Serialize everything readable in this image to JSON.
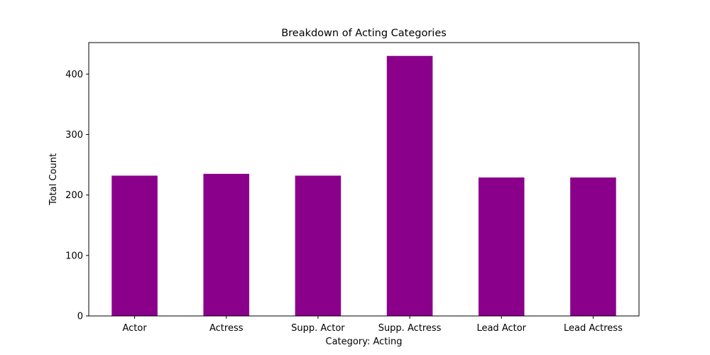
{
  "chart_data": {
    "type": "bar",
    "title": "Breakdown of Acting Categories",
    "xlabel": "Category: Acting",
    "ylabel": "Total Count",
    "categories": [
      "Actor",
      "Actress",
      "Supp. Actor",
      "Supp. Actress",
      "Lead Actor",
      "Lead Actress"
    ],
    "values": [
      232,
      235,
      232,
      430,
      229,
      229
    ],
    "ylim": [
      0,
      452
    ],
    "yticks": [
      0,
      100,
      200,
      300,
      400
    ],
    "bar_color": "#8b008b",
    "grid": false,
    "legend": "none"
  }
}
